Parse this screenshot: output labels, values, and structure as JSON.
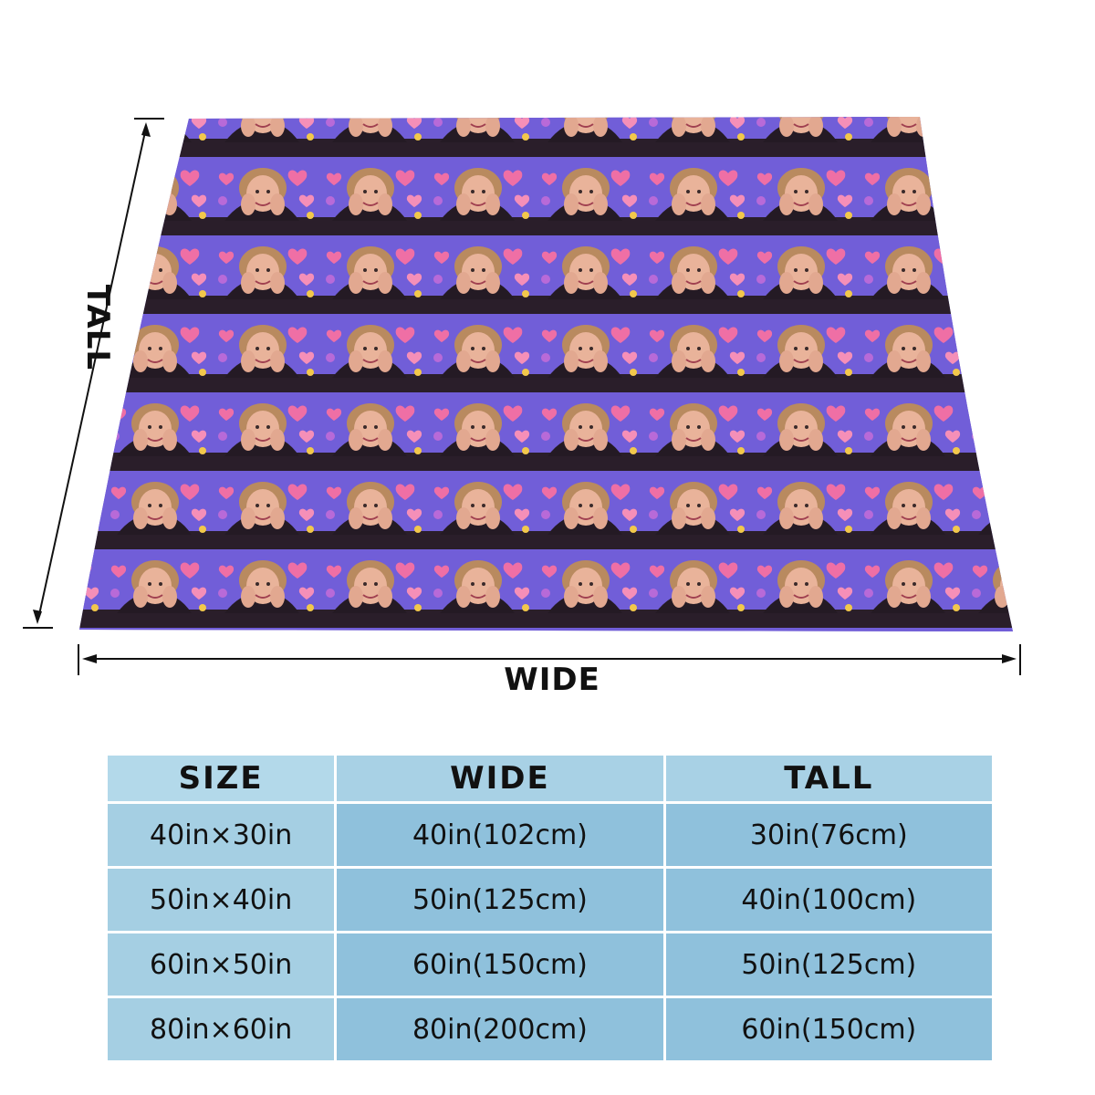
{
  "dimension_labels": {
    "tall": "TALL",
    "wide": "WIDE"
  },
  "size_table": {
    "headers": {
      "size": "SIZE",
      "wide": "WIDE",
      "tall": "TALL"
    },
    "rows": [
      {
        "size": "40in×30in",
        "wide": "40in(102cm)",
        "tall": "30in(76cm)"
      },
      {
        "size": "50in×40in",
        "wide": "50in(125cm)",
        "tall": "40in(100cm)"
      },
      {
        "size": "60in×50in",
        "wide": "60in(150cm)",
        "tall": "50in(125cm)"
      },
      {
        "size": "80in×60in",
        "wide": "80in(200cm)",
        "tall": "60in(150cm)"
      }
    ]
  },
  "colors": {
    "header_bg": "#b3d9ea",
    "cell_bg_light": "#a5cfe3",
    "cell_bg_dark": "#8fc1dc",
    "pattern_pink": "#ef6fa5",
    "pattern_blue": "#5b6be8",
    "pattern_dark": "#2a1e2a"
  },
  "blanket": {
    "pattern": "repeating photo tiles with pink hearts on purple-blue background"
  }
}
